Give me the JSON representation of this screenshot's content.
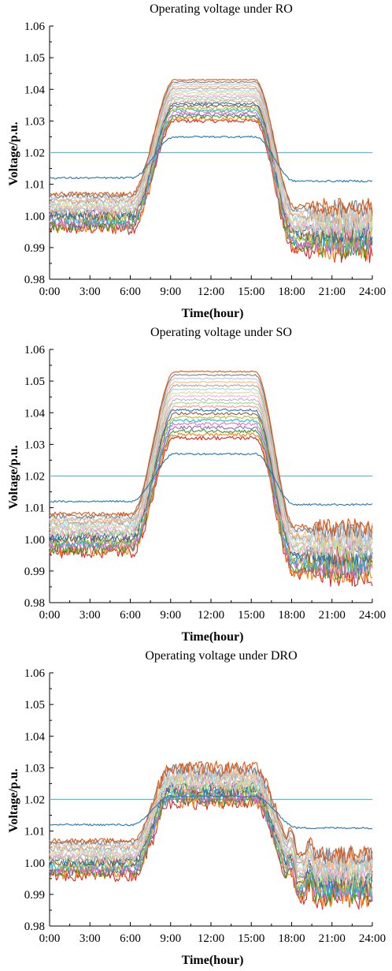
{
  "chart_data": [
    {
      "type": "line",
      "title": "Operating voltage under RO",
      "xlabel": "Time(hour)",
      "ylabel": "Voltage/p.u.",
      "xticks": [
        "0:00",
        "3:00",
        "6:00",
        "9:00",
        "12:00",
        "15:00",
        "18:00",
        "21:00",
        "24:00"
      ],
      "yticks": [
        "0.98",
        "0.99",
        "1.00",
        "1.01",
        "1.02",
        "1.03",
        "1.04",
        "1.05",
        "1.06"
      ],
      "xlim": [
        0,
        24
      ],
      "ylim": [
        0.98,
        1.06
      ],
      "reference_line": 1.02,
      "reference_color": "#5fb8db",
      "series_summary": {
        "feeder_head": {
          "night_start": 1.012,
          "plateau": 1.025,
          "night_end": 1.011,
          "color": "#1f77b4"
        },
        "bus_band_night_start": [
          0.996,
          1.007
        ],
        "bus_band_plateau": [
          1.03,
          1.043
        ],
        "bus_band_night_end": [
          0.989,
          1.003
        ],
        "series_count": 20
      }
    },
    {
      "type": "line",
      "title": "Operating voltage under SO",
      "xlabel": "Time(hour)",
      "ylabel": "Voltage/p.u.",
      "xticks": [
        "0:00",
        "3:00",
        "6:00",
        "9:00",
        "12:00",
        "15:00",
        "18:00",
        "21:00",
        "24:00"
      ],
      "yticks": [
        "0.98",
        "0.99",
        "1.00",
        "1.01",
        "1.02",
        "1.03",
        "1.04",
        "1.05",
        "1.06"
      ],
      "xlim": [
        0,
        24
      ],
      "ylim": [
        0.98,
        1.06
      ],
      "reference_line": 1.02,
      "reference_color": "#5fb8db",
      "series_summary": {
        "feeder_head": {
          "night_start": 1.012,
          "plateau": 1.027,
          "night_end": 1.011,
          "color": "#1f77b4"
        },
        "bus_band_night_start": [
          0.996,
          1.008
        ],
        "bus_band_plateau": [
          1.032,
          1.053
        ],
        "bus_band_night_end": [
          0.989,
          1.004
        ],
        "series_count": 20
      }
    },
    {
      "type": "line",
      "title": "Operating voltage under DRO",
      "xlabel": "Time(hour)",
      "ylabel": "Voltage/p.u.",
      "xticks": [
        "0:00",
        "3:00",
        "6:00",
        "9:00",
        "12:00",
        "15:00",
        "18:00",
        "21:00",
        "24:00"
      ],
      "yticks": [
        "0.98",
        "0.99",
        "1.00",
        "1.01",
        "1.02",
        "1.03",
        "1.04",
        "1.05",
        "1.06"
      ],
      "xlim": [
        0,
        24
      ],
      "ylim": [
        0.98,
        1.06
      ],
      "reference_line": 1.02,
      "reference_color": "#5fb8db",
      "series_summary": {
        "feeder_head": {
          "night_start": 1.012,
          "plateau": 1.021,
          "night_end": 1.011,
          "color": "#1f77b4"
        },
        "bus_band_night_start": [
          0.996,
          1.007
        ],
        "bus_band_plateau": [
          1.019,
          1.03
        ],
        "bus_band_night_end": [
          0.989,
          1.003
        ],
        "series_count": 20
      }
    }
  ],
  "palette": [
    "#d62728",
    "#ff7f0e",
    "#2ca02c",
    "#9467bd",
    "#e377c2",
    "#17becf",
    "#bcbd22",
    "#8c564b",
    "#1f77b4",
    "#ff9896",
    "#98df8a",
    "#c5b0d5",
    "#f7b6d2",
    "#dbdb8d",
    "#9edae5",
    "#c49c94",
    "#ffbb78",
    "#aec7e8",
    "#7f7f7f",
    "#e6550d"
  ]
}
